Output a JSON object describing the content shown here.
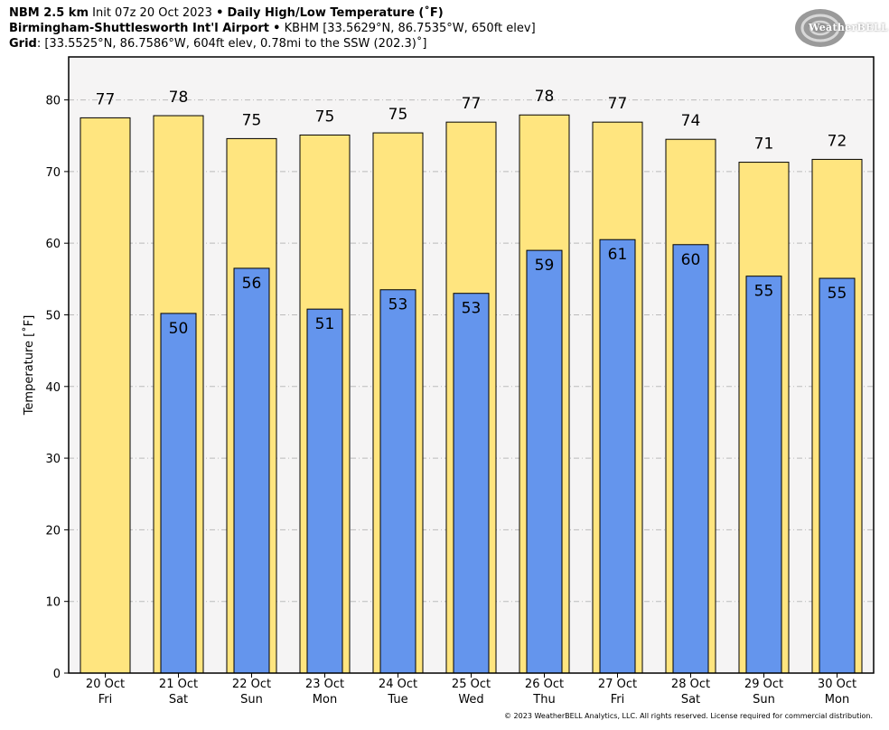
{
  "header": {
    "model": "NBM 2.5 km",
    "init": "Init 07z 20 Oct 2023",
    "sep": "•",
    "product": "Daily High/Low Temperature (˚F)",
    "station_name": "Birmingham-Shuttlesworth Int'l Airport",
    "station_info": "KBHM [33.5629°N, 86.7535°W, 650ft elev]",
    "grid_label": "Grid",
    "grid_info": ": [33.5525°N, 86.7586°W, 604ft elev, 0.78mi to the SSW (202.3)˚]"
  },
  "logo": {
    "text": "WeatherBELL"
  },
  "copyright": "© 2023 WeatherBELL Analytics, LLC. All rights reserved. License required for commercial distribution.",
  "colors": {
    "high": "#FFE57F",
    "low": "#6495ED",
    "plot_bg": "#F5F4F4",
    "grid": "#BBBBBB"
  },
  "chart_data": {
    "type": "bar",
    "ylabel": "Temperature [˚F]",
    "ylim": [
      0,
      86
    ],
    "yticks": [
      0,
      10,
      20,
      30,
      40,
      50,
      60,
      70,
      80
    ],
    "grid": "horizontal dashed",
    "categories": [
      [
        "20 Oct",
        "Fri"
      ],
      [
        "21 Oct",
        "Sat"
      ],
      [
        "22 Oct",
        "Sun"
      ],
      [
        "23 Oct",
        "Mon"
      ],
      [
        "24 Oct",
        "Tue"
      ],
      [
        "25 Oct",
        "Wed"
      ],
      [
        "26 Oct",
        "Thu"
      ],
      [
        "27 Oct",
        "Fri"
      ],
      [
        "28 Oct",
        "Sat"
      ],
      [
        "29 Oct",
        "Sun"
      ],
      [
        "30 Oct",
        "Mon"
      ]
    ],
    "series": [
      {
        "name": "High",
        "values": [
          77.5,
          77.8,
          74.6,
          75.1,
          75.4,
          76.9,
          77.9,
          76.9,
          74.5,
          71.3,
          71.7
        ],
        "labels": [
          "77",
          "78",
          "75",
          "75",
          "75",
          "77",
          "78",
          "77",
          "74",
          "71",
          "72"
        ]
      },
      {
        "name": "Low",
        "values": [
          null,
          50.2,
          56.5,
          50.8,
          53.5,
          53.0,
          59.0,
          60.5,
          59.8,
          55.4,
          55.1
        ],
        "labels": [
          "",
          "50",
          "56",
          "51",
          "53",
          "53",
          "59",
          "61",
          "60",
          "55",
          "55"
        ]
      }
    ]
  }
}
